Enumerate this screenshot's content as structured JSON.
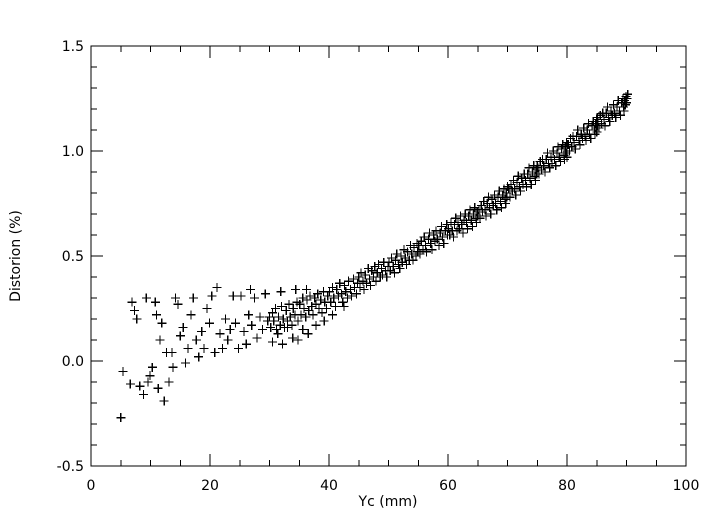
{
  "figure": {
    "background": "#ffffff",
    "foreground": "#000000"
  },
  "chart_data": {
    "type": "scatter",
    "title": "",
    "xlabel": "Yc (mm)",
    "ylabel": "Distorion (%)",
    "xlim": [
      0,
      100
    ],
    "ylim": [
      -0.5,
      1.5
    ],
    "x_major_ticks": [
      0,
      20,
      40,
      60,
      80,
      100
    ],
    "x_tick_labels": [
      "0",
      "20",
      "40",
      "60",
      "80",
      "100"
    ],
    "x_minor_step": 5,
    "y_major_ticks": [
      -0.5,
      0.0,
      0.5,
      1.0,
      1.5
    ],
    "y_tick_labels": [
      "-0.5",
      "0.0",
      "0.5",
      "1.0",
      "1.5"
    ],
    "y_minor_step": 0.1,
    "grid": false,
    "legend": null,
    "marker": "plus",
    "marker_size_px": 9,
    "color": "#000000",
    "points": [
      [
        5.0,
        -0.27
      ],
      [
        5.4,
        -0.05
      ],
      [
        6.6,
        -0.11
      ],
      [
        6.9,
        0.28
      ],
      [
        7.3,
        0.24
      ],
      [
        7.7,
        0.2
      ],
      [
        8.2,
        -0.12
      ],
      [
        8.8,
        -0.16
      ],
      [
        9.3,
        0.3
      ],
      [
        9.6,
        -0.1
      ],
      [
        9.9,
        -0.07
      ],
      [
        10.3,
        -0.03
      ],
      [
        10.8,
        0.28
      ],
      [
        11.0,
        0.22
      ],
      [
        11.3,
        -0.13
      ],
      [
        11.6,
        0.1
      ],
      [
        11.9,
        0.18
      ],
      [
        12.3,
        -0.19
      ],
      [
        12.7,
        0.04
      ],
      [
        13.1,
        -0.1
      ],
      [
        13.6,
        0.04
      ],
      [
        13.8,
        -0.03
      ],
      [
        14.2,
        0.3
      ],
      [
        14.6,
        0.27
      ],
      [
        15.0,
        0.12
      ],
      [
        15.5,
        0.16
      ],
      [
        15.9,
        -0.01
      ],
      [
        16.3,
        0.06
      ],
      [
        16.8,
        0.22
      ],
      [
        17.2,
        0.3
      ],
      [
        17.7,
        0.1
      ],
      [
        18.1,
        0.02
      ],
      [
        18.6,
        0.14
      ],
      [
        19.0,
        0.06
      ],
      [
        19.5,
        0.25
      ],
      [
        19.9,
        0.18
      ],
      [
        20.3,
        0.31
      ],
      [
        20.8,
        0.04
      ],
      [
        21.2,
        0.35
      ],
      [
        21.7,
        0.13
      ],
      [
        22.1,
        0.06
      ],
      [
        22.6,
        0.2
      ],
      [
        23.0,
        0.1
      ],
      [
        23.4,
        0.15
      ],
      [
        23.9,
        0.31
      ],
      [
        24.3,
        0.18
      ],
      [
        24.8,
        0.06
      ],
      [
        25.2,
        0.31
      ],
      [
        25.7,
        0.14
      ],
      [
        26.1,
        0.08
      ],
      [
        26.5,
        0.22
      ],
      [
        26.8,
        0.34
      ],
      [
        27.0,
        0.17
      ],
      [
        27.5,
        0.3
      ],
      [
        27.9,
        0.11
      ],
      [
        28.4,
        0.21
      ],
      [
        28.8,
        0.15
      ],
      [
        29.3,
        0.32
      ],
      [
        29.7,
        0.19
      ],
      [
        30.5,
        0.09
      ],
      [
        31.4,
        0.13
      ],
      [
        31.9,
        0.33
      ],
      [
        32.2,
        0.08
      ],
      [
        33.0,
        0.16
      ],
      [
        33.9,
        0.11
      ],
      [
        34.4,
        0.34
      ],
      [
        34.8,
        0.1
      ],
      [
        35.6,
        0.15
      ],
      [
        36.2,
        0.34
      ],
      [
        36.5,
        0.13
      ],
      [
        37.8,
        0.17
      ],
      [
        39.2,
        0.19
      ],
      [
        40.6,
        0.22
      ],
      [
        42.5,
        0.26
      ],
      [
        30.0,
        0.21
      ],
      [
        30.2,
        0.16
      ],
      [
        30.5,
        0.23
      ],
      [
        30.7,
        0.19
      ],
      [
        31.0,
        0.25
      ],
      [
        31.2,
        0.15
      ],
      [
        31.5,
        0.21
      ],
      [
        31.8,
        0.17
      ],
      [
        32.0,
        0.26
      ],
      [
        32.3,
        0.2
      ],
      [
        32.5,
        0.16
      ],
      [
        32.8,
        0.24
      ],
      [
        33.0,
        0.19
      ],
      [
        33.3,
        0.27
      ],
      [
        33.5,
        0.21
      ],
      [
        33.8,
        0.17
      ],
      [
        34.0,
        0.25
      ],
      [
        34.3,
        0.22
      ],
      [
        34.6,
        0.28
      ],
      [
        34.8,
        0.19
      ],
      [
        35.1,
        0.27
      ],
      [
        35.3,
        0.22
      ],
      [
        35.6,
        0.3
      ],
      [
        35.8,
        0.25
      ],
      [
        36.1,
        0.21
      ],
      [
        36.3,
        0.29
      ],
      [
        36.6,
        0.24
      ],
      [
        36.8,
        0.31
      ],
      [
        37.1,
        0.26
      ],
      [
        37.3,
        0.22
      ],
      [
        37.6,
        0.3
      ],
      [
        37.8,
        0.27
      ],
      [
        38.1,
        0.32
      ],
      [
        38.3,
        0.25
      ],
      [
        38.6,
        0.29
      ],
      [
        38.8,
        0.23
      ],
      [
        39.1,
        0.33
      ],
      [
        39.3,
        0.28
      ],
      [
        39.6,
        0.25
      ],
      [
        39.8,
        0.31
      ],
      [
        40.1,
        0.33
      ],
      [
        40.3,
        0.28
      ],
      [
        40.6,
        0.35
      ],
      [
        40.8,
        0.3
      ],
      [
        41.1,
        0.26
      ],
      [
        41.3,
        0.34
      ],
      [
        41.6,
        0.31
      ],
      [
        41.8,
        0.37
      ],
      [
        42.1,
        0.32
      ],
      [
        42.3,
        0.28
      ],
      [
        42.6,
        0.36
      ],
      [
        42.8,
        0.33
      ],
      [
        43.1,
        0.3
      ],
      [
        43.3,
        0.38
      ],
      [
        43.6,
        0.34
      ],
      [
        43.8,
        0.31
      ],
      [
        44.1,
        0.39
      ],
      [
        44.3,
        0.35
      ],
      [
        44.6,
        0.32
      ],
      [
        44.8,
        0.37
      ],
      [
        45.0,
        0.4
      ],
      [
        45.2,
        0.35
      ],
      [
        45.4,
        0.42
      ],
      [
        45.7,
        0.38
      ],
      [
        45.9,
        0.34
      ],
      [
        46.1,
        0.41
      ],
      [
        46.3,
        0.37
      ],
      [
        46.6,
        0.44
      ],
      [
        46.8,
        0.39
      ],
      [
        47.0,
        0.36
      ],
      [
        47.2,
        0.43
      ],
      [
        47.5,
        0.4
      ],
      [
        47.7,
        0.45
      ],
      [
        47.9,
        0.38
      ],
      [
        48.1,
        0.42
      ],
      [
        48.3,
        0.46
      ],
      [
        48.6,
        0.4
      ],
      [
        48.8,
        0.44
      ],
      [
        49.0,
        0.41
      ],
      [
        49.2,
        0.47
      ],
      [
        49.5,
        0.43
      ],
      [
        49.7,
        0.4
      ],
      [
        49.9,
        0.45
      ],
      [
        50.1,
        0.47
      ],
      [
        50.3,
        0.43
      ],
      [
        50.5,
        0.49
      ],
      [
        50.8,
        0.45
      ],
      [
        51.0,
        0.42
      ],
      [
        51.2,
        0.48
      ],
      [
        51.4,
        0.51
      ],
      [
        51.7,
        0.46
      ],
      [
        51.9,
        0.44
      ],
      [
        52.1,
        0.5
      ],
      [
        52.3,
        0.47
      ],
      [
        52.6,
        0.53
      ],
      [
        52.8,
        0.49
      ],
      [
        53.0,
        0.46
      ],
      [
        53.2,
        0.52
      ],
      [
        53.5,
        0.48
      ],
      [
        53.7,
        0.55
      ],
      [
        53.9,
        0.51
      ],
      [
        54.1,
        0.48
      ],
      [
        54.3,
        0.54
      ],
      [
        54.6,
        0.5
      ],
      [
        54.8,
        0.56
      ],
      [
        54.9,
        0.52
      ],
      [
        55.1,
        0.55
      ],
      [
        55.3,
        0.51
      ],
      [
        55.5,
        0.57
      ],
      [
        55.8,
        0.53
      ],
      [
        56.0,
        0.59
      ],
      [
        56.2,
        0.55
      ],
      [
        56.4,
        0.52
      ],
      [
        56.7,
        0.58
      ],
      [
        56.9,
        0.61
      ],
      [
        57.1,
        0.56
      ],
      [
        57.3,
        0.53
      ],
      [
        57.6,
        0.6
      ],
      [
        57.8,
        0.57
      ],
      [
        58.0,
        0.62
      ],
      [
        58.2,
        0.58
      ],
      [
        58.5,
        0.55
      ],
      [
        58.7,
        0.61
      ],
      [
        58.9,
        0.64
      ],
      [
        59.1,
        0.59
      ],
      [
        59.3,
        0.56
      ],
      [
        59.6,
        0.62
      ],
      [
        59.8,
        0.65
      ],
      [
        59.9,
        0.6
      ],
      [
        60.1,
        0.63
      ],
      [
        60.3,
        0.6
      ],
      [
        60.5,
        0.66
      ],
      [
        60.7,
        0.62
      ],
      [
        60.9,
        0.59
      ],
      [
        61.1,
        0.65
      ],
      [
        61.3,
        0.68
      ],
      [
        61.5,
        0.62
      ],
      [
        61.7,
        0.66
      ],
      [
        61.9,
        0.63
      ],
      [
        62.1,
        0.69
      ],
      [
        62.3,
        0.65
      ],
      [
        62.5,
        0.61
      ],
      [
        62.7,
        0.67
      ],
      [
        62.9,
        0.7
      ],
      [
        63.1,
        0.66
      ],
      [
        63.3,
        0.63
      ],
      [
        63.5,
        0.69
      ],
      [
        63.7,
        0.72
      ],
      [
        63.9,
        0.67
      ],
      [
        64.1,
        0.64
      ],
      [
        64.3,
        0.7
      ],
      [
        64.5,
        0.73
      ],
      [
        64.7,
        0.68
      ],
      [
        64.8,
        0.66
      ],
      [
        64.9,
        0.71
      ],
      [
        65.0,
        0.69
      ],
      [
        65.2,
        0.72
      ],
      [
        65.4,
        0.68
      ],
      [
        65.6,
        0.74
      ],
      [
        65.8,
        0.71
      ],
      [
        66.0,
        0.76
      ],
      [
        66.2,
        0.72
      ],
      [
        66.4,
        0.69
      ],
      [
        66.6,
        0.75
      ],
      [
        66.8,
        0.78
      ],
      [
        67.0,
        0.73
      ],
      [
        67.2,
        0.7
      ],
      [
        67.4,
        0.77
      ],
      [
        67.6,
        0.74
      ],
      [
        67.8,
        0.79
      ],
      [
        68.0,
        0.75
      ],
      [
        68.2,
        0.72
      ],
      [
        68.4,
        0.78
      ],
      [
        68.6,
        0.81
      ],
      [
        68.8,
        0.76
      ],
      [
        69.0,
        0.73
      ],
      [
        69.2,
        0.79
      ],
      [
        69.4,
        0.82
      ],
      [
        69.6,
        0.77
      ],
      [
        69.7,
        0.75
      ],
      [
        69.8,
        0.8
      ],
      [
        69.9,
        0.78
      ],
      [
        70.0,
        0.83
      ],
      [
        70.2,
        0.82
      ],
      [
        70.4,
        0.78
      ],
      [
        70.6,
        0.84
      ],
      [
        70.8,
        0.81
      ],
      [
        71.0,
        0.86
      ],
      [
        71.2,
        0.82
      ],
      [
        71.4,
        0.79
      ],
      [
        71.6,
        0.85
      ],
      [
        71.8,
        0.88
      ],
      [
        72.0,
        0.83
      ],
      [
        72.2,
        0.81
      ],
      [
        72.4,
        0.87
      ],
      [
        72.6,
        0.84
      ],
      [
        72.8,
        0.89
      ],
      [
        73.0,
        0.86
      ],
      [
        73.2,
        0.83
      ],
      [
        73.4,
        0.89
      ],
      [
        73.6,
        0.92
      ],
      [
        73.8,
        0.87
      ],
      [
        74.0,
        0.84
      ],
      [
        74.2,
        0.9
      ],
      [
        74.4,
        0.93
      ],
      [
        74.6,
        0.88
      ],
      [
        74.7,
        0.86
      ],
      [
        74.8,
        0.91
      ],
      [
        74.9,
        0.89
      ],
      [
        75.0,
        0.93
      ],
      [
        75.1,
        0.92
      ],
      [
        75.3,
        0.89
      ],
      [
        75.5,
        0.95
      ],
      [
        75.7,
        0.91
      ],
      [
        75.9,
        0.96
      ],
      [
        76.1,
        0.93
      ],
      [
        76.3,
        0.9
      ],
      [
        76.5,
        0.96
      ],
      [
        76.7,
        0.99
      ],
      [
        76.9,
        0.94
      ],
      [
        77.1,
        0.92
      ],
      [
        77.3,
        0.97
      ],
      [
        77.5,
        0.94
      ],
      [
        77.7,
        1.0
      ],
      [
        77.9,
        0.96
      ],
      [
        78.1,
        0.93
      ],
      [
        78.3,
        0.99
      ],
      [
        78.5,
        1.02
      ],
      [
        78.7,
        0.97
      ],
      [
        78.9,
        0.95
      ],
      [
        79.1,
        1.01
      ],
      [
        79.3,
        1.03
      ],
      [
        79.5,
        0.98
      ],
      [
        79.6,
        0.96
      ],
      [
        79.7,
        1.02
      ],
      [
        79.8,
        0.99
      ],
      [
        79.9,
        1.04
      ],
      [
        80.0,
        1.0
      ],
      [
        80.0,
        0.97
      ],
      [
        80.1,
        1.03
      ],
      [
        80.2,
        1.03
      ],
      [
        80.4,
        1.0
      ],
      [
        80.6,
        1.06
      ],
      [
        80.8,
        1.02
      ],
      [
        81.0,
        1.07
      ],
      [
        81.2,
        1.04
      ],
      [
        81.4,
        1.01
      ],
      [
        81.6,
        1.07
      ],
      [
        81.8,
        1.1
      ],
      [
        82.0,
        1.05
      ],
      [
        82.2,
        1.03
      ],
      [
        82.4,
        1.08
      ],
      [
        82.6,
        1.06
      ],
      [
        82.8,
        1.11
      ],
      [
        83.0,
        1.07
      ],
      [
        83.2,
        1.05
      ],
      [
        83.4,
        1.1
      ],
      [
        83.6,
        1.13
      ],
      [
        83.8,
        1.08
      ],
      [
        84.0,
        1.06
      ],
      [
        84.2,
        1.12
      ],
      [
        84.4,
        1.14
      ],
      [
        84.6,
        1.1
      ],
      [
        84.7,
        1.08
      ],
      [
        84.8,
        1.13
      ],
      [
        84.9,
        1.11
      ],
      [
        85.0,
        1.15
      ],
      [
        85.0,
        1.09
      ],
      [
        85.1,
        1.12
      ],
      [
        85.1,
        1.16
      ],
      [
        85.2,
        1.14
      ],
      [
        85.4,
        1.11
      ],
      [
        85.6,
        1.17
      ],
      [
        85.8,
        1.13
      ],
      [
        86.0,
        1.18
      ],
      [
        86.2,
        1.15
      ],
      [
        86.4,
        1.12
      ],
      [
        86.6,
        1.18
      ],
      [
        86.8,
        1.21
      ],
      [
        87.0,
        1.16
      ],
      [
        87.2,
        1.14
      ],
      [
        87.4,
        1.19
      ],
      [
        87.6,
        1.17
      ],
      [
        87.8,
        1.22
      ],
      [
        88.0,
        1.18
      ],
      [
        88.2,
        1.16
      ],
      [
        88.4,
        1.21
      ],
      [
        88.6,
        1.24
      ],
      [
        88.8,
        1.19
      ],
      [
        89.0,
        1.17
      ],
      [
        89.2,
        1.23
      ],
      [
        89.4,
        1.25
      ],
      [
        89.5,
        1.21
      ],
      [
        89.6,
        1.19
      ],
      [
        89.7,
        1.24
      ],
      [
        89.8,
        1.22
      ],
      [
        89.9,
        1.26
      ],
      [
        90.0,
        1.23
      ],
      [
        90.1,
        1.25
      ],
      [
        90.2,
        1.27
      ]
    ]
  }
}
